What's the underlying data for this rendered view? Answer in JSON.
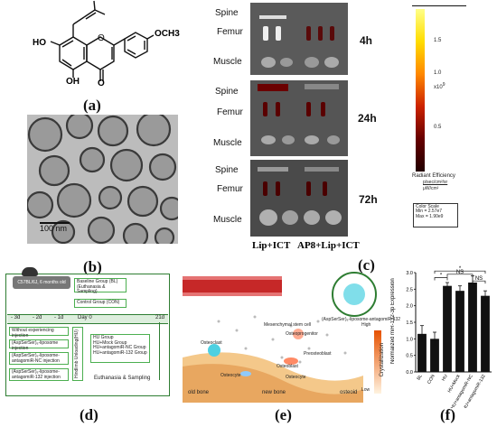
{
  "panel_a": {
    "label": "(a)",
    "substituents": {
      "oh_top": "HO",
      "oh_bottom": "OH",
      "ketone": "O",
      "methoxy": "OCH3"
    }
  },
  "panel_b": {
    "label": "(b)",
    "scale_bar": "100 nm"
  },
  "panel_c": {
    "label": "(c)",
    "rows": [
      {
        "time": "4h",
        "tissues": [
          "Spine",
          "Femur",
          "Muscle"
        ]
      },
      {
        "time": "24h",
        "tissues": [
          "Spine",
          "Femur",
          "Muscle"
        ]
      },
      {
        "time": "72h",
        "tissues": [
          "Spine",
          "Femur",
          "Muscle"
        ]
      }
    ],
    "groups": [
      "Lip+ICT",
      "AP8+Lip+ICT"
    ],
    "colorbar": {
      "ticks": [
        "1.5",
        "1.0",
        "0.5"
      ],
      "exponent": "x10",
      "exponent_power": "9",
      "title": "Radiant Efficiency",
      "units_num": "p/sec/cm²/sr",
      "units_den": "μW/cm²",
      "scale_title": "Color Scale",
      "scale_min": "Min = 2.57e7",
      "scale_max": "Max = 1.90e9"
    }
  },
  "panel_d": {
    "label": "(d)",
    "mouse": "C57BL/6J, 6 months old",
    "timeline": [
      "- 3d",
      "- 2d",
      "- 1d",
      "Day 0",
      "21d"
    ],
    "baseline": "Baseline Group (BL)\n(Euthanasia & Sampling)",
    "control": "Control Group (CON)",
    "injections": [
      "Without experiencing injection",
      "(AspSerSer)₆-liposome injection",
      "(AspSerSer)₆-liposome-antagomiR-NC injection",
      "(AspSerSer)₆-liposome-antagomiR-132 injection"
    ],
    "unloading": "Hindlimb Unloading(HU)",
    "groups": [
      "HU Group",
      "HU+Mock Group",
      "HU+antagomiR-NC Group",
      "HU+antagomiR-132 Group"
    ],
    "end": "Euthanasia & Sampling"
  },
  "panel_e": {
    "label": "(e)",
    "carrier": "(AspSerSer)₆-liposome-antagomiR-132",
    "cells": [
      "Mesenchymal stem cell",
      "Osteoclast",
      "Osteoprogenitor",
      "Preosteoblast",
      "Osteoblast",
      "Osteocyte",
      "Osteocyte"
    ],
    "regions": [
      "old bone",
      "new bone",
      "osteoid"
    ],
    "scale": {
      "title": "Crystallization",
      "high": "High",
      "low": "Low"
    }
  },
  "panel_f": {
    "label": "(f)",
    "chart_data": {
      "type": "bar",
      "categories": [
        "BL",
        "CON",
        "HU",
        "HU+Mock",
        "HU+antagomiR-NC",
        "HU+antagomiR-132"
      ],
      "values": [
        1.15,
        1.0,
        2.6,
        2.45,
        2.7,
        2.3
      ],
      "errors": [
        0.25,
        0.2,
        0.1,
        0.15,
        0.2,
        0.15
      ],
      "ylabel": "Normalized miR-132-3p Expression",
      "yticks": [
        "0.0",
        "0.5",
        "1.0",
        "1.5",
        "2.0",
        "2.5",
        "3.0"
      ],
      "ylim": [
        0,
        3.0
      ],
      "annotations": [
        "*",
        "*",
        "NS",
        "NS"
      ]
    }
  }
}
